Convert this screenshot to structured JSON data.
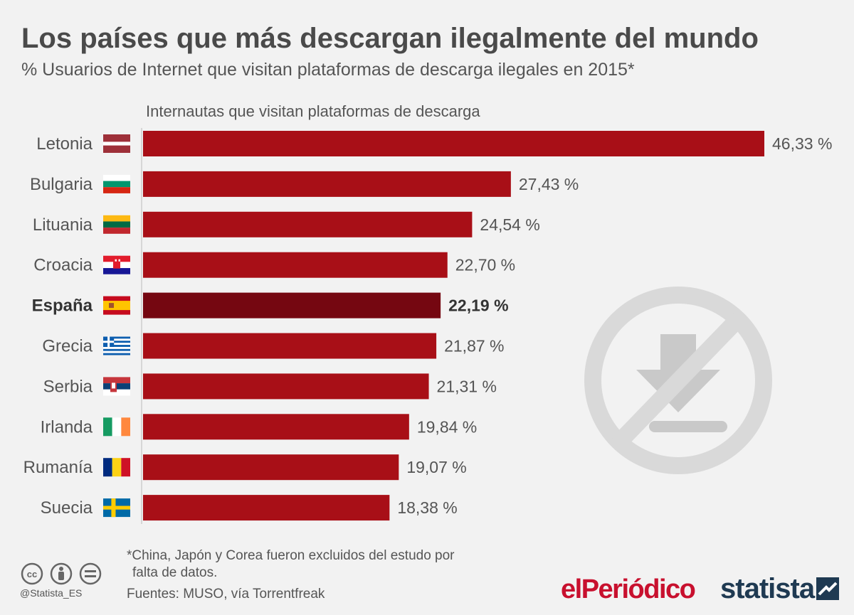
{
  "title": "Los países que más descargan ilegalmente del mundo",
  "subtitle": "% Usuarios de Internet que visitan plataformas de descarga ilegales en 2015*",
  "colors": {
    "bar": "#a80f17",
    "highlight": "#750711",
    "background": "#f2f2f2"
  },
  "chart_data": {
    "type": "bar",
    "orientation": "horizontal",
    "series_label": "Internautas que visitan plataformas de descarga",
    "categories": [
      "Letonia",
      "Bulgaria",
      "Lituania",
      "Croacia",
      "España",
      "Grecia",
      "Serbia",
      "Irlanda",
      "Rumanía",
      "Suecia"
    ],
    "values": [
      46.33,
      27.43,
      24.54,
      22.7,
      22.19,
      21.87,
      21.31,
      19.84,
      19.07,
      18.38
    ],
    "value_labels": [
      "46,33 %",
      "27,43 %",
      "24,54 %",
      "22,70 %",
      "22,19 %",
      "21,87 %",
      "21,31 %",
      "19,84 %",
      "19,07 %",
      "18,38 %"
    ],
    "highlight_index": 4,
    "xlim": [
      0,
      46.33
    ]
  },
  "flags": [
    "latvia-flag-icon",
    "bulgaria-flag-icon",
    "lithuania-flag-icon",
    "croatia-flag-icon",
    "spain-flag-icon",
    "greece-flag-icon",
    "serbia-flag-icon",
    "ireland-flag-icon",
    "romania-flag-icon",
    "sweden-flag-icon"
  ],
  "footer": {
    "note_line1": "*China, Japón y Corea fueron excluidos del estudo por",
    "note_line2": "falta de datos.",
    "source": "Fuentes: MUSO, vía Torrentfreak",
    "handle": "@Statista_ES",
    "brand_periodico_a": "el",
    "brand_periodico_b": "Periódico",
    "brand_statista": "statista"
  }
}
